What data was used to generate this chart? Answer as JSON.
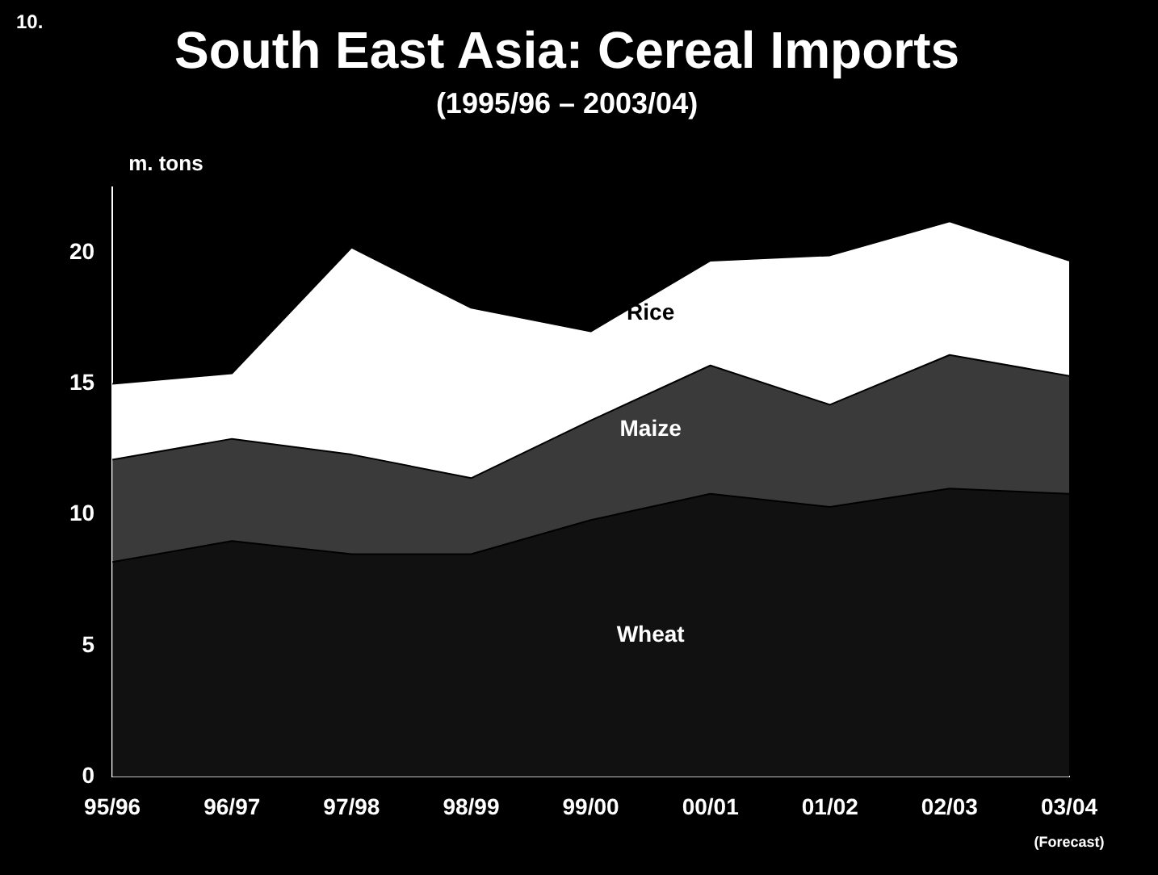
{
  "chart_data": {
    "type": "area",
    "title": "South East Asia: Cereal Imports",
    "subtitle": "(1995/96 – 2003/04)",
    "ylabel": "m. tons",
    "annotations": [
      "10.",
      "(Forecast)"
    ],
    "categories": [
      "95/96",
      "96/97",
      "97/98",
      "98/99",
      "99/00",
      "00/01",
      "01/02",
      "02/03",
      "03/04"
    ],
    "stacked": true,
    "ylim": [
      0,
      22.5
    ],
    "yticks": [
      0,
      5,
      10,
      15,
      20
    ],
    "legend": false,
    "grid": false,
    "series": [
      {
        "name": "Wheat",
        "color": "#111111",
        "values": [
          8.2,
          9.0,
          8.5,
          8.5,
          9.8,
          10.8,
          10.3,
          11.0,
          10.8
        ]
      },
      {
        "name": "Maize",
        "color": "#3a3a3a",
        "values": [
          3.9,
          3.9,
          3.8,
          2.9,
          3.8,
          4.9,
          3.9,
          5.1,
          4.5
        ]
      },
      {
        "name": "Rice",
        "color": "#ffffff",
        "values": [
          2.9,
          2.5,
          7.9,
          6.5,
          3.4,
          4.0,
          5.7,
          5.1,
          4.4
        ]
      }
    ]
  }
}
